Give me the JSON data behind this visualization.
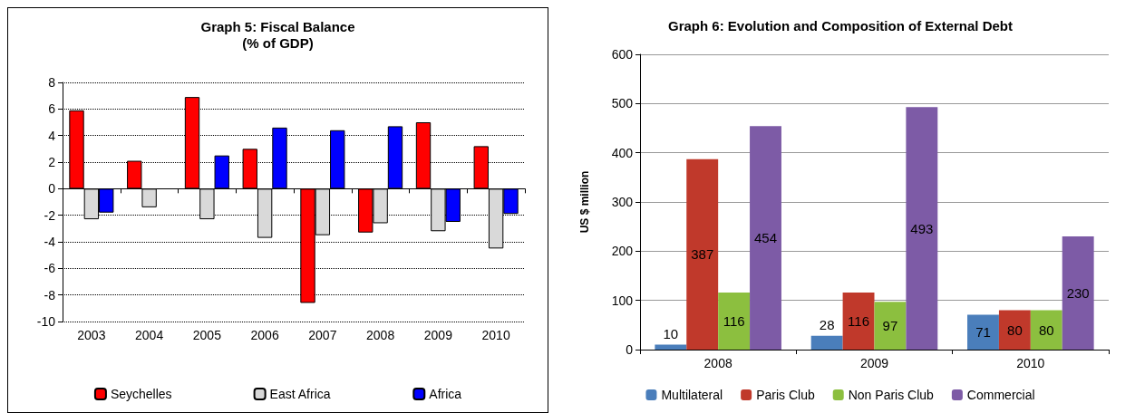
{
  "chart_data": [
    {
      "type": "bar",
      "title": "Graph 5: Fiscal Balance\n(% of GDP)",
      "categories": [
        "2003",
        "2004",
        "2005",
        "2006",
        "2007",
        "2008",
        "2009",
        "2010"
      ],
      "series": [
        {
          "name": "Seychelles",
          "color": "#ff0000",
          "values": [
            5.9,
            2.1,
            6.9,
            3.0,
            -8.6,
            -3.3,
            5.0,
            3.2
          ]
        },
        {
          "name": "East Africa",
          "color": "#d9d9d9",
          "values": [
            -2.3,
            -1.4,
            -2.3,
            -3.7,
            -3.5,
            -2.6,
            -3.2,
            -4.5
          ]
        },
        {
          "name": "Africa",
          "color": "#0000ff",
          "values": [
            -1.8,
            null,
            2.5,
            4.6,
            4.4,
            4.7,
            -2.5,
            -1.9
          ]
        }
      ],
      "ylim": [
        -10,
        8
      ],
      "yticks": [
        -10,
        -8,
        -6,
        -4,
        -2,
        0,
        2,
        4,
        6,
        8
      ],
      "grid": "y",
      "legend": "bottom"
    },
    {
      "type": "bar",
      "title": "Graph 6: Evolution and Composition of External Debt",
      "ylabel": "US $ million",
      "categories": [
        "2008",
        "2009",
        "2010"
      ],
      "series": [
        {
          "name": "Multilateral",
          "color": "#4a7ebb",
          "values": [
            10,
            28,
            71
          ]
        },
        {
          "name": "Paris Club",
          "color": "#c0392b",
          "values": [
            387,
            116,
            80
          ]
        },
        {
          "name": "Non Paris Club",
          "color": "#8cbf3f",
          "values": [
            116,
            97,
            80
          ]
        },
        {
          "name": "Commercial",
          "color": "#7d5ba6",
          "values": [
            454,
            493,
            230
          ]
        }
      ],
      "ylim": [
        0,
        600
      ],
      "yticks": [
        0,
        100,
        200,
        300,
        400,
        500,
        600
      ],
      "grid": "y",
      "legend": "bottom",
      "data_labels": true
    }
  ]
}
